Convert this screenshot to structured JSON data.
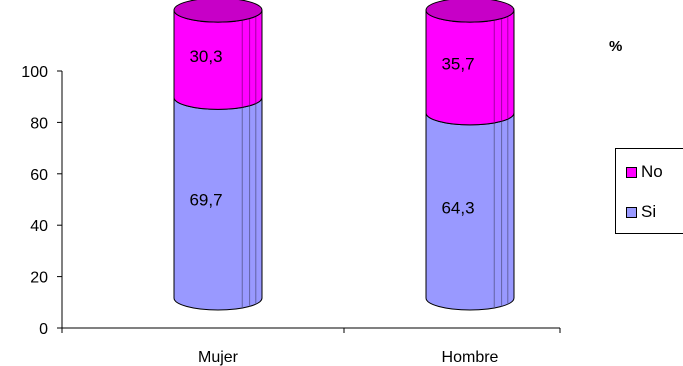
{
  "chart_data": {
    "type": "bar",
    "stacked": true,
    "shape": "cylinder",
    "categories": [
      "Mujer",
      "Hombre"
    ],
    "series": [
      {
        "name": "Si",
        "values": [
          69.7,
          64.3
        ],
        "labels": [
          "69,7",
          "64,3"
        ],
        "color": "#9999FF"
      },
      {
        "name": "No",
        "values": [
          30.3,
          35.7
        ],
        "labels": [
          "30,3",
          "35,7"
        ],
        "color": "#FF00FF"
      }
    ],
    "unit_label": "%",
    "ylim": [
      0,
      100
    ],
    "yticks": [
      0,
      20,
      40,
      60,
      80,
      100
    ],
    "legend_position": "right",
    "grid": false
  }
}
